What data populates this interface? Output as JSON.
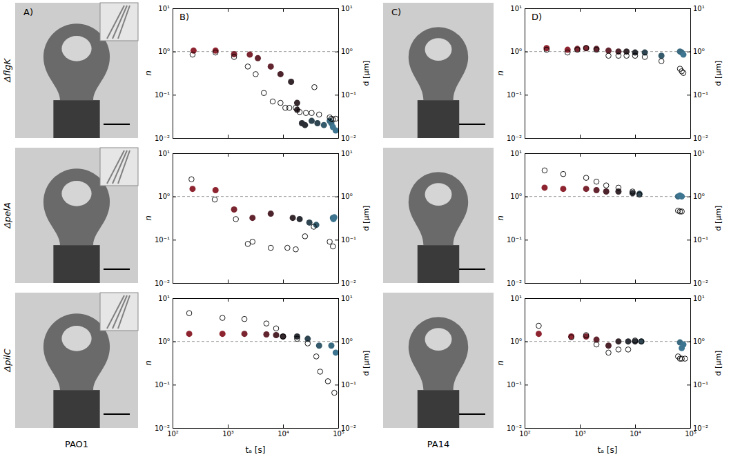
{
  "row_labels": [
    "ΔflgK",
    "ΔpelA",
    "ΔpilC"
  ],
  "column_labels": [
    "PAO1",
    "PA14"
  ],
  "panel_labels": [
    "A)",
    "B)",
    "C)",
    "D)"
  ],
  "chart_data": [
    {
      "type": "scatter",
      "log": true,
      "tick_labels": "y",
      "xlim": [
        100,
        100000
      ],
      "ylim": [
        0.01,
        10
      ],
      "y2lim": [
        0.01,
        10
      ],
      "xticks": [
        100,
        1000,
        10000,
        100000
      ],
      "yticks": [
        {
          "value": 0.01,
          "label": "10⁻²"
        },
        {
          "value": 0.1,
          "label": "10⁻¹"
        },
        {
          "value": 1,
          "label": "10⁰"
        },
        {
          "value": 10,
          "label": "10¹"
        }
      ],
      "y2ticks": [
        {
          "value": 0.01,
          "label": "10⁻²"
        },
        {
          "value": 0.1,
          "label": "10⁻¹"
        },
        {
          "value": 1,
          "label": "10⁰"
        },
        {
          "value": 10,
          "label": "10¹"
        }
      ],
      "y_label": "n",
      "y2_label": "d [μm]",
      "hline": 1,
      "series": [
        {
          "marker": "circle",
          "x": [
            240,
            600,
            1300,
            2500,
            3500,
            6000,
            9000,
            14000,
            18000,
            18000,
            22000,
            25000,
            33000,
            42000,
            55000,
            70000,
            75000,
            80000,
            90000
          ],
          "values": [
            1.05,
            1.05,
            0.87,
            0.85,
            0.7,
            0.45,
            0.3,
            0.2,
            0.065,
            0.045,
            0.022,
            0.02,
            0.025,
            0.022,
            0.02,
            0.025,
            0.022,
            0.018,
            0.015
          ],
          "colors": [
            "#8e2430",
            "#8e2430",
            "#7a2530",
            "#7a2530",
            "#62242e",
            "#62242e",
            "#4c232b",
            "#36292d",
            "#36292d",
            "#36292d",
            "#2b2f35",
            "#2b2f35",
            "#2f4652",
            "#2f4652",
            "#345a6b",
            "#3a6a80",
            "#3a6a80",
            "#3e7590",
            "#3e7590"
          ]
        },
        {
          "marker": "open",
          "axis": "y2",
          "color": "#000000",
          "x": [
            230,
            600,
            1300,
            2300,
            3200,
            4500,
            6500,
            9000,
            11000,
            13000,
            17000,
            20000,
            26000,
            33000,
            37000,
            45000,
            70000,
            75000,
            80000,
            90000
          ],
          "values": [
            0.85,
            0.95,
            0.75,
            0.45,
            0.3,
            0.11,
            0.07,
            0.065,
            0.05,
            0.05,
            0.05,
            0.04,
            0.038,
            0.038,
            0.15,
            0.035,
            0.03,
            0.028,
            0.027,
            0.028
          ]
        }
      ]
    },
    {
      "type": "scatter",
      "log": true,
      "tick_labels": "y",
      "xlim": [
        100,
        100000
      ],
      "ylim": [
        0.01,
        10
      ],
      "y2lim": [
        0.01,
        10
      ],
      "xticks": [
        100,
        1000,
        10000,
        100000
      ],
      "yticks": [
        {
          "value": 0.01,
          "label": "10⁻²"
        },
        {
          "value": 0.1,
          "label": "10⁻¹"
        },
        {
          "value": 1,
          "label": "10⁰"
        },
        {
          "value": 10,
          "label": "10¹"
        }
      ],
      "y2ticks": [
        {
          "value": 0.01,
          "label": "10⁻²"
        },
        {
          "value": 0.1,
          "label": "10⁻¹"
        },
        {
          "value": 1,
          "label": "10⁰"
        },
        {
          "value": 10,
          "label": "10¹"
        }
      ],
      "y_label": "n",
      "y2_label": "d [μm]",
      "hline": 1,
      "series": [
        {
          "marker": "circle",
          "x": [
            230,
            600,
            1300,
            2800,
            6000,
            15000,
            20000,
            30000,
            40000,
            80000,
            82000,
            85000
          ],
          "values": [
            1.5,
            1.4,
            0.5,
            0.32,
            0.4,
            0.32,
            0.3,
            0.25,
            0.22,
            0.32,
            0.3,
            0.33
          ],
          "colors": [
            "#8e2430",
            "#8e2430",
            "#7a2530",
            "#62242e",
            "#4c232b",
            "#36292d",
            "#2b2f35",
            "#2f4652",
            "#345a6b",
            "#3a6a80",
            "#3e7590",
            "#3e7590"
          ]
        },
        {
          "marker": "open",
          "axis": "y2",
          "color": "#000000",
          "x": [
            220,
            580,
            1400,
            2300,
            2800,
            6000,
            12000,
            17000,
            25000,
            36000,
            70000,
            80000
          ],
          "values": [
            2.5,
            0.85,
            0.3,
            0.08,
            0.09,
            0.065,
            0.065,
            0.06,
            0.12,
            0.2,
            0.09,
            0.07
          ]
        }
      ]
    },
    {
      "type": "scatter",
      "log": true,
      "xlim": [
        100,
        100000
      ],
      "ylim": [
        0.01,
        10
      ],
      "y2lim": [
        0.01,
        10
      ],
      "xticks": [
        {
          "value": 100,
          "label": "10²"
        },
        {
          "value": 1000,
          "label": "10³"
        },
        {
          "value": 10000,
          "label": "10⁴"
        },
        {
          "value": 100000,
          "label": "10⁵"
        }
      ],
      "yticks": [
        {
          "value": 0.01,
          "label": "10⁻²"
        },
        {
          "value": 0.1,
          "label": "10⁻¹"
        },
        {
          "value": 1,
          "label": "10⁰"
        },
        {
          "value": 10,
          "label": "10¹"
        }
      ],
      "y2ticks": [
        {
          "value": 0.01,
          "label": "10⁻²"
        },
        {
          "value": 0.1,
          "label": "10⁻¹"
        },
        {
          "value": 1,
          "label": "10⁰"
        },
        {
          "value": 10,
          "label": "10¹"
        }
      ],
      "x_label": "tₐ [s]",
      "y_label": "n",
      "y2_label": "d [μm]",
      "hline": 1,
      "series": [
        {
          "marker": "circle",
          "x": [
            200,
            800,
            2000,
            5000,
            7500,
            10000,
            18000,
            28000,
            45000,
            75000,
            90000
          ],
          "values": [
            1.5,
            1.5,
            1.5,
            1.45,
            1.4,
            1.3,
            1.3,
            1.15,
            0.8,
            0.8,
            0.55
          ],
          "colors": [
            "#8e2430",
            "#8e2430",
            "#7a2530",
            "#62242e",
            "#4c232b",
            "#36292d",
            "#2b2f35",
            "#2f4652",
            "#345a6b",
            "#3a6a80",
            "#3e7590"
          ]
        },
        {
          "marker": "open",
          "axis": "y2",
          "color": "#000000",
          "x": [
            200,
            800,
            2000,
            5000,
            7500,
            10000,
            18000,
            28000,
            40000,
            47000,
            65000,
            85000
          ],
          "values": [
            4.5,
            3.5,
            3.3,
            2.6,
            2.0,
            1.3,
            1.15,
            0.9,
            0.45,
            0.2,
            0.12,
            0.065
          ]
        }
      ]
    },
    {
      "type": "scatter",
      "log": true,
      "tick_labels": "y",
      "xlim": [
        100,
        100000
      ],
      "ylim": [
        0.01,
        10
      ],
      "y2lim": [
        0.01,
        10
      ],
      "xticks": [
        100,
        1000,
        10000,
        100000
      ],
      "yticks": [
        {
          "value": 0.01,
          "label": "10⁻²"
        },
        {
          "value": 0.1,
          "label": "10⁻¹"
        },
        {
          "value": 1,
          "label": "10⁰"
        },
        {
          "value": 10,
          "label": "10¹"
        }
      ],
      "y2ticks": [
        {
          "value": 0.01,
          "label": "10⁻²"
        },
        {
          "value": 0.1,
          "label": "10⁻¹"
        },
        {
          "value": 1,
          "label": "10⁰"
        },
        {
          "value": 10,
          "label": "10¹"
        }
      ],
      "y_label": "n",
      "y2_label": "d [μm]",
      "hline": 1,
      "series": [
        {
          "marker": "circle",
          "x": [
            250,
            600,
            900,
            1300,
            2000,
            3300,
            5000,
            7000,
            10000,
            15000,
            30000,
            65000,
            70000,
            75000
          ],
          "values": [
            1.2,
            1.1,
            1.15,
            1.2,
            1.15,
            1.05,
            1.0,
            1.0,
            0.95,
            0.95,
            0.8,
            1.0,
            0.95,
            0.85
          ],
          "colors": [
            "#8e2430",
            "#8e2430",
            "#7a2530",
            "#7a2530",
            "#62242e",
            "#62242e",
            "#4c232b",
            "#36292d",
            "#2b2f35",
            "#2f4652",
            "#345a6b",
            "#3a6a80",
            "#3a6a80",
            "#3e7590"
          ]
        },
        {
          "marker": "open",
          "axis": "y2",
          "color": "#000000",
          "x": [
            250,
            600,
            900,
            1300,
            2000,
            3300,
            5000,
            7000,
            10000,
            15000,
            30000,
            65000,
            70000,
            75000
          ],
          "values": [
            1.1,
            0.95,
            1.1,
            1.2,
            1.1,
            0.8,
            0.8,
            0.8,
            0.8,
            0.75,
            0.6,
            0.4,
            0.35,
            0.32
          ]
        }
      ]
    },
    {
      "type": "scatter",
      "log": true,
      "tick_labels": "y",
      "xlim": [
        100,
        100000
      ],
      "ylim": [
        0.01,
        10
      ],
      "y2lim": [
        0.01,
        10
      ],
      "xticks": [
        100,
        1000,
        10000,
        100000
      ],
      "yticks": [
        {
          "value": 0.01,
          "label": "10⁻²"
        },
        {
          "value": 0.1,
          "label": "10⁻¹"
        },
        {
          "value": 1,
          "label": "10⁰"
        },
        {
          "value": 10,
          "label": "10¹"
        }
      ],
      "y2ticks": [
        {
          "value": 0.01,
          "label": "10⁻²"
        },
        {
          "value": 0.1,
          "label": "10⁻¹"
        },
        {
          "value": 1,
          "label": "10⁰"
        },
        {
          "value": 10,
          "label": "10¹"
        }
      ],
      "y_label": "n",
      "y2_label": "d [μm]",
      "hline": 1,
      "series": [
        {
          "marker": "circle",
          "x": [
            230,
            500,
            1300,
            2000,
            3000,
            5000,
            9000,
            12000,
            60000,
            65000,
            70000
          ],
          "values": [
            1.6,
            1.5,
            1.5,
            1.4,
            1.3,
            1.3,
            1.2,
            1.15,
            1.0,
            1.05,
            1.0
          ],
          "colors": [
            "#8e2430",
            "#8e2430",
            "#7a2530",
            "#62242e",
            "#4c232b",
            "#36292d",
            "#2b2f35",
            "#2f4652",
            "#3a6a80",
            "#3e7590",
            "#3e7590"
          ]
        },
        {
          "marker": "open",
          "axis": "y2",
          "color": "#000000",
          "x": [
            230,
            500,
            1300,
            2000,
            3000,
            5000,
            9000,
            12000,
            60000,
            65000,
            70000
          ],
          "values": [
            4,
            3.3,
            2.7,
            2.2,
            1.8,
            1.6,
            1.3,
            1.1,
            0.47,
            0.45,
            0.45
          ]
        }
      ]
    },
    {
      "type": "scatter",
      "log": true,
      "xlim": [
        100,
        100000
      ],
      "ylim": [
        0.01,
        10
      ],
      "y2lim": [
        0.01,
        10
      ],
      "xticks": [
        {
          "value": 100,
          "label": "10²"
        },
        {
          "value": 1000,
          "label": "10³"
        },
        {
          "value": 10000,
          "label": "10⁴"
        },
        {
          "value": 100000,
          "label": "10⁵"
        }
      ],
      "yticks": [
        {
          "value": 0.01,
          "label": "10⁻²"
        },
        {
          "value": 0.1,
          "label": "10⁻¹"
        },
        {
          "value": 1,
          "label": "10⁰"
        },
        {
          "value": 10,
          "label": "10¹"
        }
      ],
      "y2ticks": [
        {
          "value": 0.01,
          "label": "10⁻²"
        },
        {
          "value": 0.1,
          "label": "10⁻¹"
        },
        {
          "value": 1,
          "label": "10⁰"
        },
        {
          "value": 10,
          "label": "10¹"
        }
      ],
      "x_label": "tₐ [s]",
      "y_label": "n",
      "y2_label": "d [μm]",
      "hline": 1,
      "series": [
        {
          "marker": "circle",
          "x": [
            180,
            700,
            1300,
            2000,
            3300,
            5000,
            7500,
            10000,
            13000,
            65000,
            70000,
            75000
          ],
          "values": [
            1.5,
            1.3,
            1.3,
            1.1,
            0.8,
            1.0,
            1.0,
            1.0,
            1.0,
            0.95,
            0.7,
            0.85
          ],
          "colors": [
            "#8e2430",
            "#8e2430",
            "#7a2530",
            "#62242e",
            "#4c232b",
            "#36292d",
            "#2b2f35",
            "#2b2f35",
            "#2f4652",
            "#3a6a80",
            "#3e7590",
            "#3e7590"
          ]
        },
        {
          "marker": "open",
          "axis": "y2",
          "color": "#000000",
          "x": [
            180,
            700,
            1300,
            2000,
            3300,
            5000,
            7500,
            10000,
            13000,
            60000,
            65000,
            70000,
            80000
          ],
          "values": [
            2.3,
            1.25,
            1.4,
            0.85,
            0.55,
            0.65,
            0.65,
            1.05,
            1.0,
            0.45,
            0.4,
            0.4,
            0.4
          ]
        }
      ]
    }
  ]
}
